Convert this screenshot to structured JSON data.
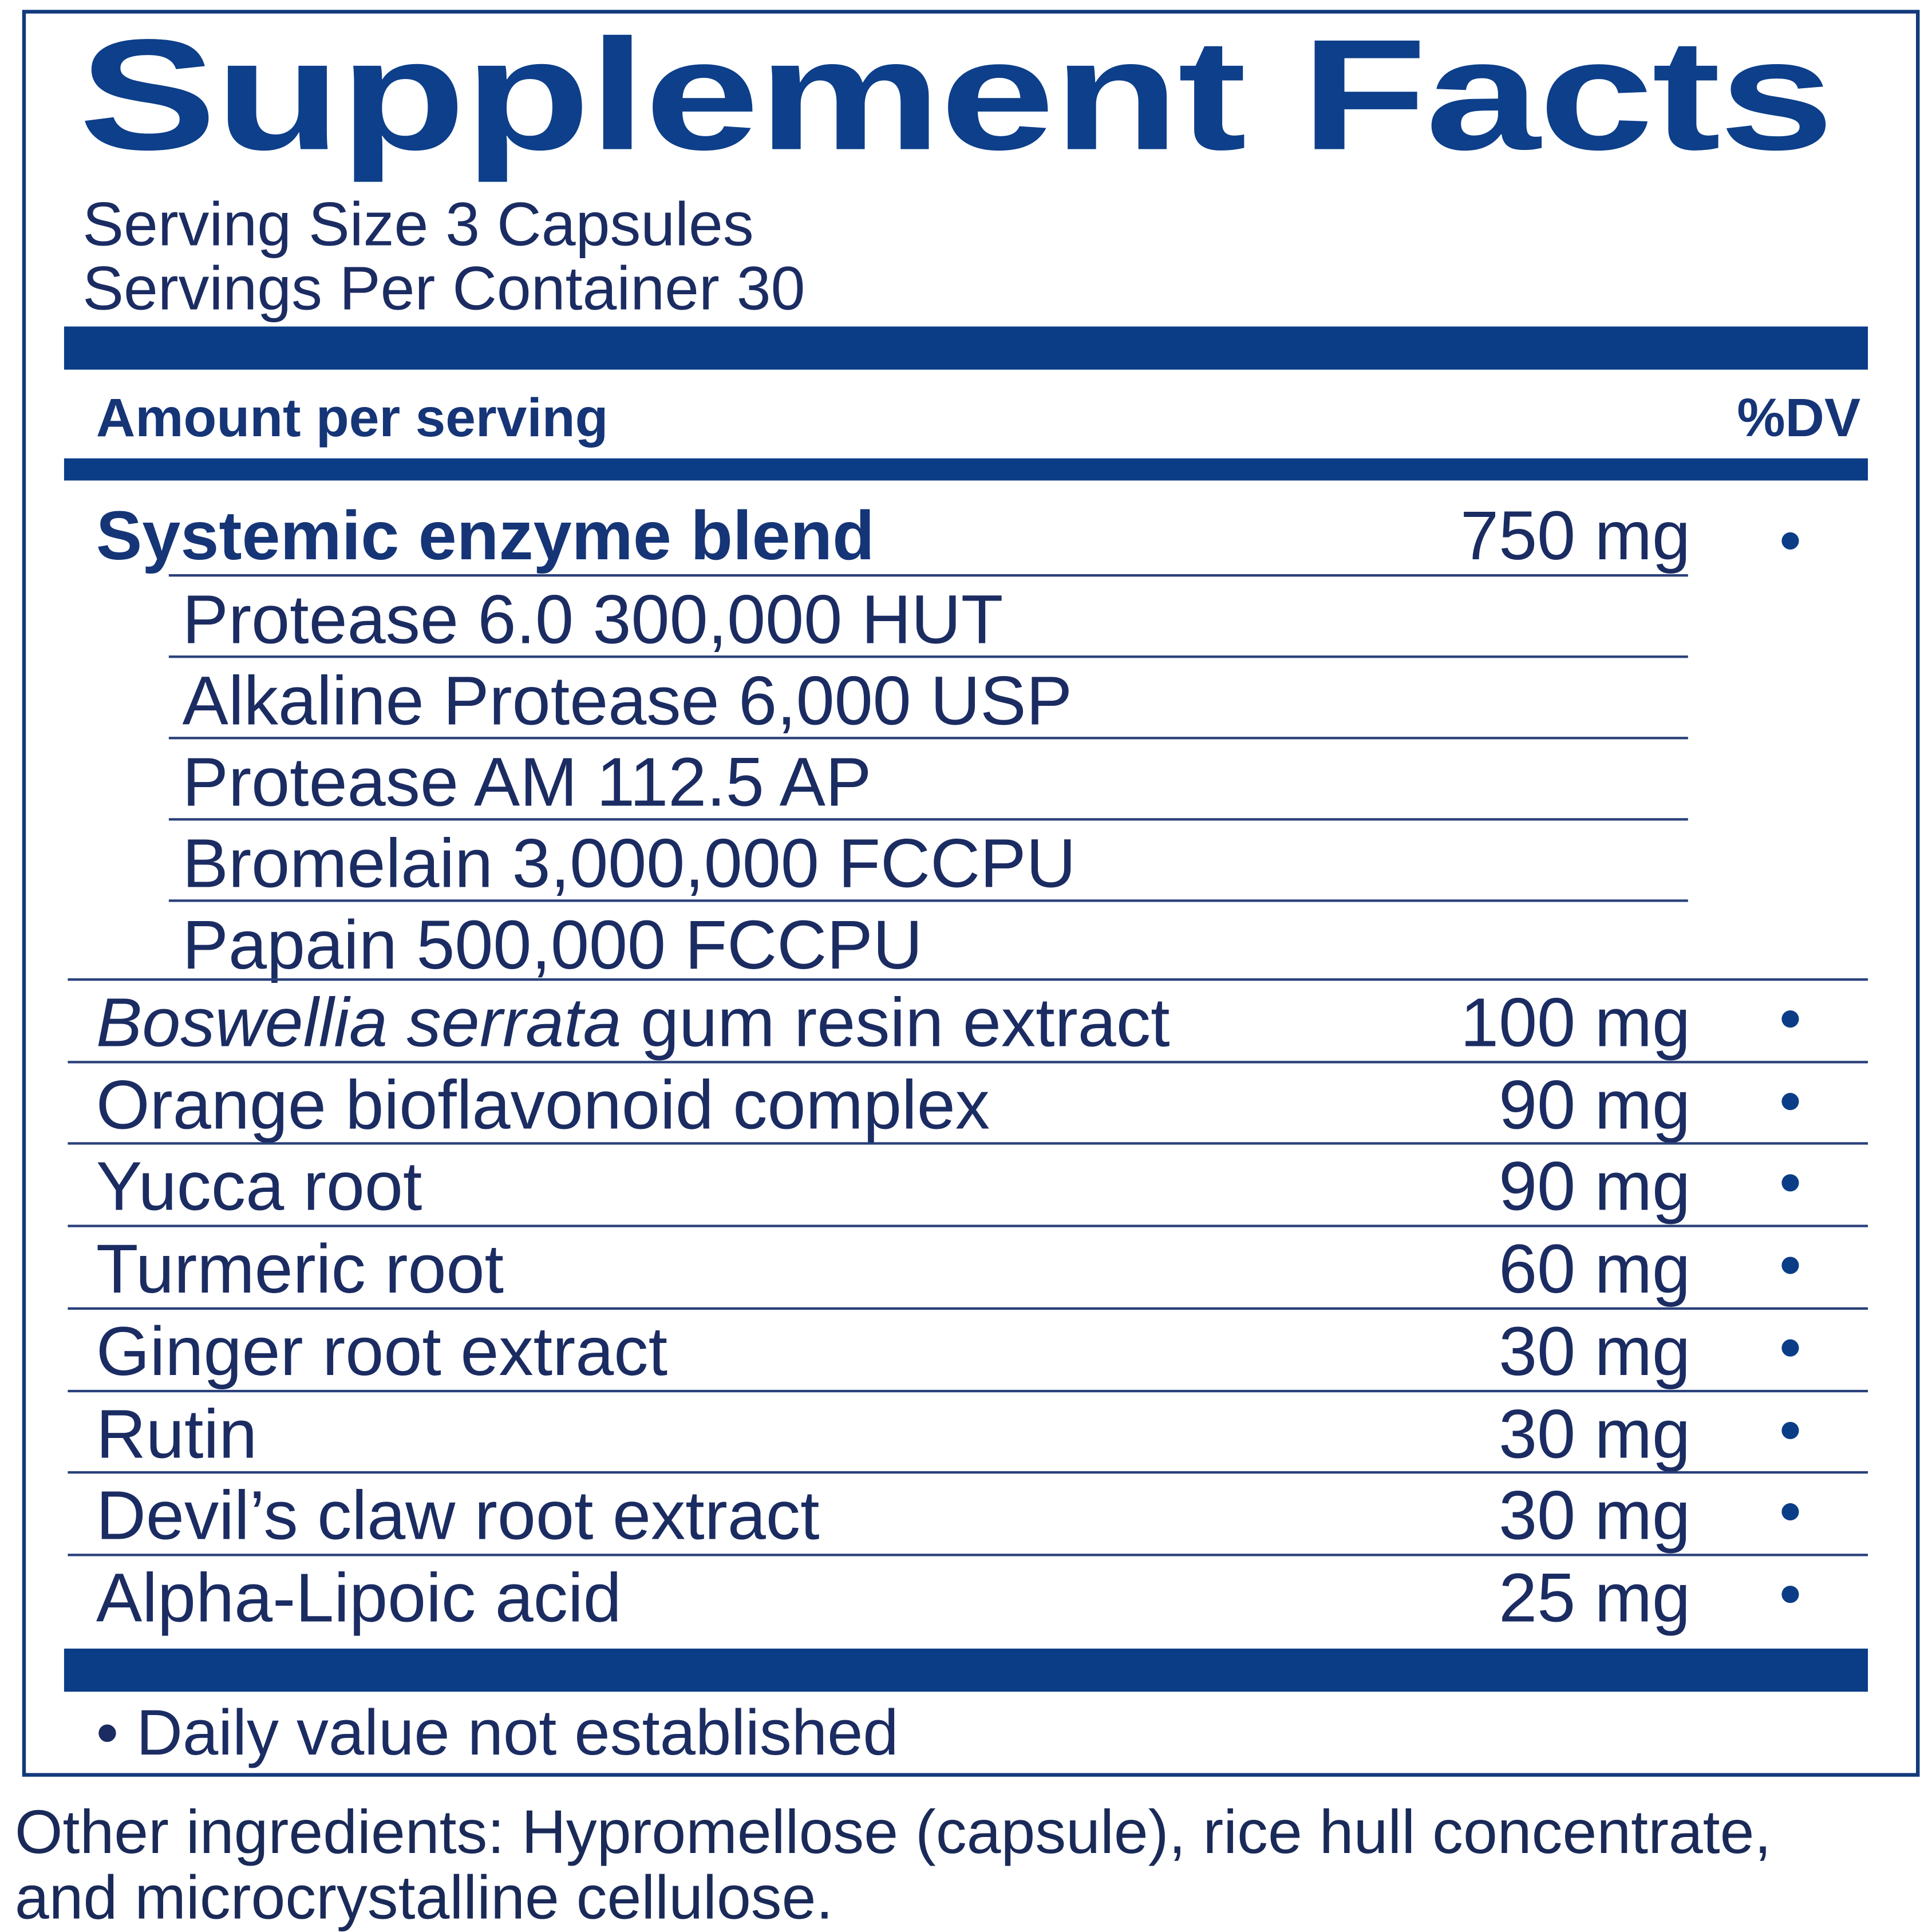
{
  "label": {
    "title": "Supplement Facts",
    "serving_size": "Serving Size 3 Capsules",
    "servings_per_container": "Servings Per Container 30",
    "header_amount": "Amount per serving",
    "header_dv": "%DV",
    "blend": {
      "name": "Systemic enzyme blend",
      "amount": "750 mg",
      "dv": "•",
      "components": [
        "Protease 6.0 300,000 HUT",
        "Alkaline Protease 6,000 USP",
        "Protease AM 112.5 AP",
        "Bromelain 3,000,000 FCCPU",
        "Papain 500,000 FCCPU"
      ]
    },
    "ingredients": [
      {
        "name_italic": "Boswellia serrata",
        "name": " gum resin extract",
        "amount": "100 mg",
        "dv": "•"
      },
      {
        "name_italic": "",
        "name": "Orange bioflavonoid complex",
        "amount": "90 mg",
        "dv": "•"
      },
      {
        "name_italic": "",
        "name": "Yucca root",
        "amount": "90 mg",
        "dv": "•"
      },
      {
        "name_italic": "",
        "name": "Turmeric root",
        "amount": "60 mg",
        "dv": "•"
      },
      {
        "name_italic": "",
        "name": "Ginger root extract",
        "amount": "30 mg",
        "dv": "•"
      },
      {
        "name_italic": "",
        "name": "Rutin",
        "amount": "30 mg",
        "dv": "•"
      },
      {
        "name_italic": "",
        "name": "Devil’s claw root extract",
        "amount": "30 mg",
        "dv": "•"
      },
      {
        "name_italic": "",
        "name": "Alpha-Lipoic acid",
        "amount": "25 mg",
        "dv": "•"
      }
    ],
    "footnote": "• Daily value not established",
    "other_ingredients_line1": "Other ingredients: Hypromellose (capsule), rice hull concentrate,",
    "other_ingredients_line2": "and microcrystalline cellulose."
  },
  "colors": {
    "brand_navy": "#0b3d87",
    "text": "#1b2c62"
  }
}
